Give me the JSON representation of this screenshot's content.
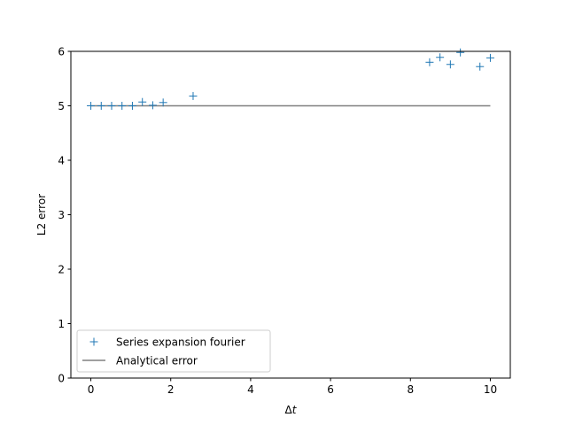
{
  "chart_data": {
    "type": "scatter",
    "title": "",
    "xlabel": "Δt",
    "ylabel": "L2 error",
    "xlim": [
      -0.5,
      10.5
    ],
    "ylim": [
      0,
      6
    ],
    "xticks": [
      0,
      2,
      4,
      6,
      8,
      10
    ],
    "yticks": [
      0,
      1,
      2,
      3,
      4,
      5,
      6
    ],
    "grid": false,
    "legend_position": "lower-left",
    "series": [
      {
        "name": "Series expansion fourier",
        "kind": "markers",
        "marker": "+",
        "color": "#1f77b4",
        "x": [
          0.0,
          0.26,
          0.52,
          0.78,
          1.04,
          1.29,
          1.55,
          1.81,
          2.56,
          8.48,
          8.74,
          9.0,
          9.25,
          9.74,
          10.0
        ],
        "y": [
          5.0,
          5.0,
          5.0,
          5.0,
          5.0,
          5.07,
          5.01,
          5.06,
          5.18,
          5.8,
          5.89,
          5.76,
          5.98,
          5.72,
          5.88
        ]
      },
      {
        "name": "Analytical error",
        "kind": "line",
        "color": "#808080",
        "x": [
          0.0,
          10.0
        ],
        "y": [
          5.0,
          5.0
        ]
      }
    ]
  }
}
